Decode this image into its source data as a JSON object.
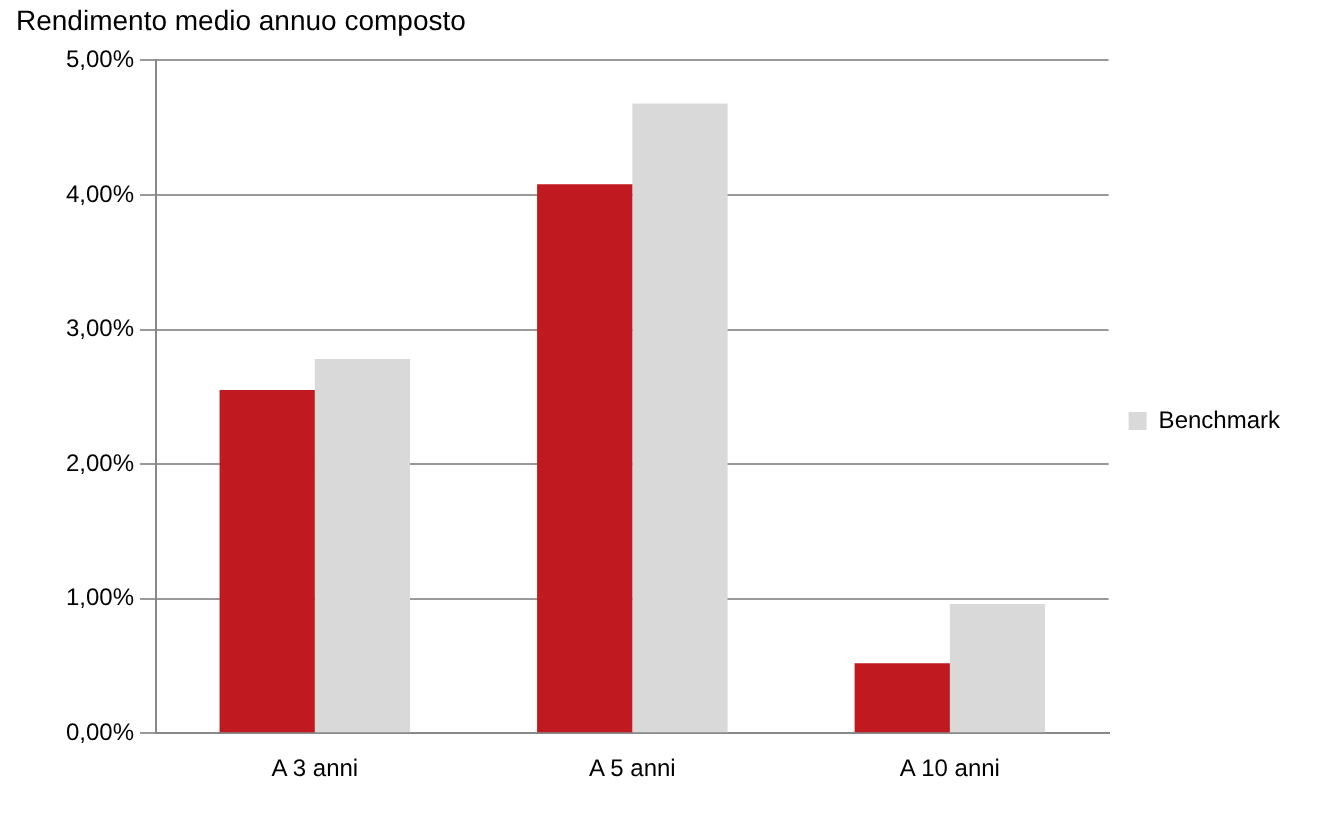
{
  "chart_data": {
    "type": "bar",
    "title": "Rendimento medio annuo composto",
    "categories": [
      "A 3 anni",
      "A 5 anni",
      "A 10 anni"
    ],
    "series": [
      {
        "color": "#c0191f",
        "values": [
          2.55,
          4.08,
          0.52
        ]
      },
      {
        "name": "Benchmark",
        "color": "#d9d9d9",
        "values": [
          2.78,
          4.68,
          0.96
        ]
      }
    ],
    "ylim": [
      0,
      5
    ],
    "yticks": [
      {
        "value": 0,
        "label": "0,00%"
      },
      {
        "value": 1,
        "label": "1,00%"
      },
      {
        "value": 2,
        "label": "2,00%"
      },
      {
        "value": 3,
        "label": "3,00%"
      },
      {
        "value": 4,
        "label": "4,00%"
      },
      {
        "value": 5,
        "label": "5,00%"
      }
    ],
    "grid": "y",
    "legend": "right"
  }
}
